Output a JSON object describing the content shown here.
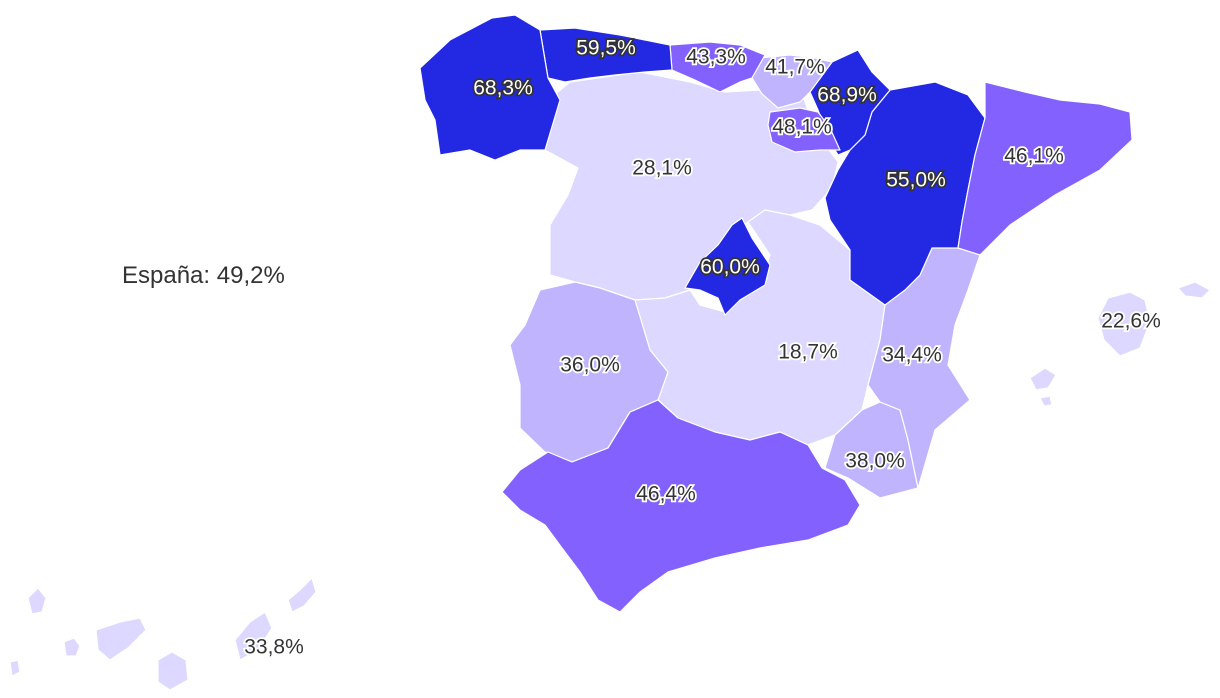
{
  "national": {
    "label": "España",
    "value": "49,2%"
  },
  "colors": {
    "very_high": "#2329e3",
    "high": "#8361ff",
    "medium": "#c0b4ff",
    "low": "#dcd8ff",
    "dark_text": "#333333",
    "light_text": "#ffffff"
  },
  "regions": [
    {
      "name": "Galicia",
      "value": "68,3%",
      "class": "very_high"
    },
    {
      "name": "Asturias",
      "value": "59,5%",
      "class": "very_high"
    },
    {
      "name": "Cantabria",
      "value": "43,3%",
      "class": "high"
    },
    {
      "name": "País Vasco",
      "value": "41,7%",
      "class": "medium"
    },
    {
      "name": "Navarra",
      "value": "68,9%",
      "class": "very_high"
    },
    {
      "name": "La Rioja",
      "value": "48,1%",
      "class": "high"
    },
    {
      "name": "Aragón",
      "value": "55,0%",
      "class": "very_high"
    },
    {
      "name": "Cataluña",
      "value": "46,1%",
      "class": "high"
    },
    {
      "name": "Castilla y León",
      "value": "28,1%",
      "class": "low"
    },
    {
      "name": "Madrid",
      "value": "60,0%",
      "class": "very_high"
    },
    {
      "name": "Castilla-La Mancha",
      "value": "18,7%",
      "class": "low"
    },
    {
      "name": "Comunitat Valenciana",
      "value": "34,4%",
      "class": "medium"
    },
    {
      "name": "Illes Balears",
      "value": "22,6%",
      "class": "low"
    },
    {
      "name": "Extremadura",
      "value": "36,0%",
      "class": "medium"
    },
    {
      "name": "Murcia",
      "value": "38,0%",
      "class": "medium"
    },
    {
      "name": "Andalucía",
      "value": "46,4%",
      "class": "high"
    },
    {
      "name": "Canarias",
      "value": "33,8%",
      "class": "low"
    }
  ]
}
